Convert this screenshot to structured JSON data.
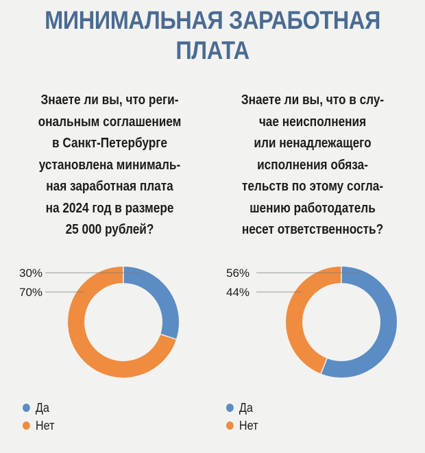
{
  "header": {
    "title_line1": "МИНИМАЛЬНАЯ ЗАРАБОТНАЯ",
    "title_line2": "ПЛАТА"
  },
  "questions": [
    {
      "lines": [
        "Знаете ли вы, что реги-",
        "ональным соглашением",
        "в Санкт-Петербурге",
        "установлена минималь-",
        "ная заработная плата",
        "на 2024 год в размере",
        "25 000 рублей?"
      ]
    },
    {
      "lines": [
        "Знаете ли вы, что в слу-",
        "чае неисполнения",
        "или ненадлежащего",
        "исполнения обяза-",
        "тельств по этому согла-",
        "шению работодатель",
        "несет ответственность?"
      ]
    }
  ],
  "colors": {
    "yes": "#5b8cc3",
    "no": "#ef8c3f",
    "title": "#4a6b92"
  },
  "chart_data": [
    {
      "type": "pie",
      "categories": [
        "Да",
        "Нет"
      ],
      "values": [
        30,
        70
      ],
      "labels": [
        "30%",
        "70%"
      ],
      "donut": true,
      "legend": "bottom-left"
    },
    {
      "type": "pie",
      "categories": [
        "Да",
        "Нет"
      ],
      "values": [
        56,
        44
      ],
      "labels": [
        "56%",
        "44%"
      ],
      "donut": true,
      "legend": "bottom-left"
    }
  ]
}
